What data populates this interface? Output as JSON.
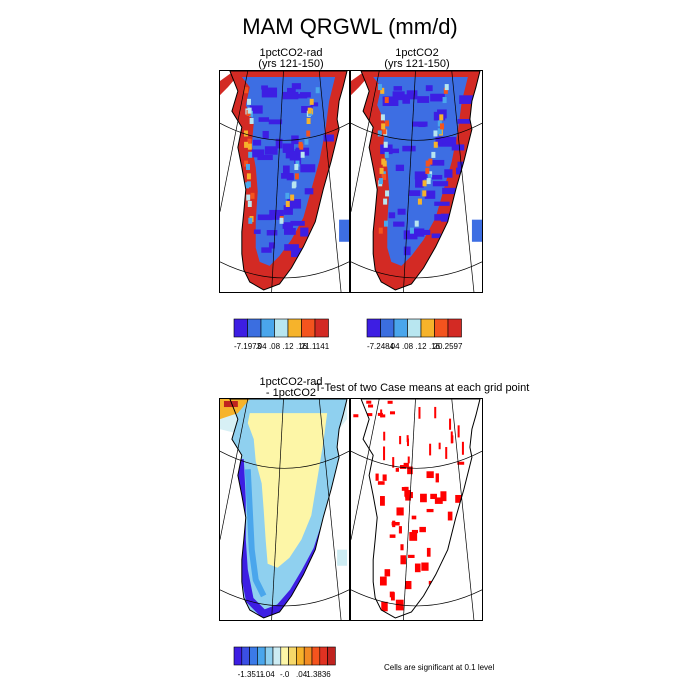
{
  "figure": {
    "title": "MAM QRGWL (mm/d)"
  },
  "chart_data": [
    {
      "type": "heatmap",
      "title_line1": "1pctCO2-rad",
      "title_line2": "(yrs 121-150)",
      "colorbar": {
        "colors": [
          "#3d1ee3",
          "#3b6ee0",
          "#4aa6ec",
          "#b8e6f0",
          "#f6b32b",
          "#f4541e",
          "#d32a24"
        ],
        "tick_labels": [
          "-7.1973",
          ".04",
          ".08",
          ".12",
          ".16",
          "21.1141"
        ]
      }
    },
    {
      "type": "heatmap",
      "title_line1": "1pctCO2",
      "title_line2": "(yrs 121-150)",
      "colorbar": {
        "colors": [
          "#3d1ee3",
          "#3b6ee0",
          "#4aa6ec",
          "#b8e6f0",
          "#f6b32b",
          "#f4541e",
          "#d32a24"
        ],
        "tick_labels": [
          "-7.2484",
          ".04",
          ".08",
          ".12",
          ".16",
          "20.2597"
        ]
      }
    },
    {
      "type": "heatmap",
      "title_line1": "1pctCO2-rad",
      "title_line2": "- 1pctCO2",
      "colorbar": {
        "colors": [
          "#3d1ee3",
          "#3b4fe5",
          "#3b7ae8",
          "#4aa6ec",
          "#8fd0ef",
          "#cdecf3",
          "#fdf6a7",
          "#f6d86a",
          "#f6b32b",
          "#f28c24",
          "#f4541e",
          "#e03222",
          "#c0231f"
        ],
        "tick_labels": [
          "-1.3511",
          "-.04",
          "-.0",
          ".04",
          "1.3836"
        ]
      }
    },
    {
      "type": "heatmap",
      "title_line1": "T-Test of two Case means at each grid point",
      "footnote": "Cells are significant at 0.1 level",
      "colors": {
        "significant": "#ff0000"
      }
    }
  ]
}
